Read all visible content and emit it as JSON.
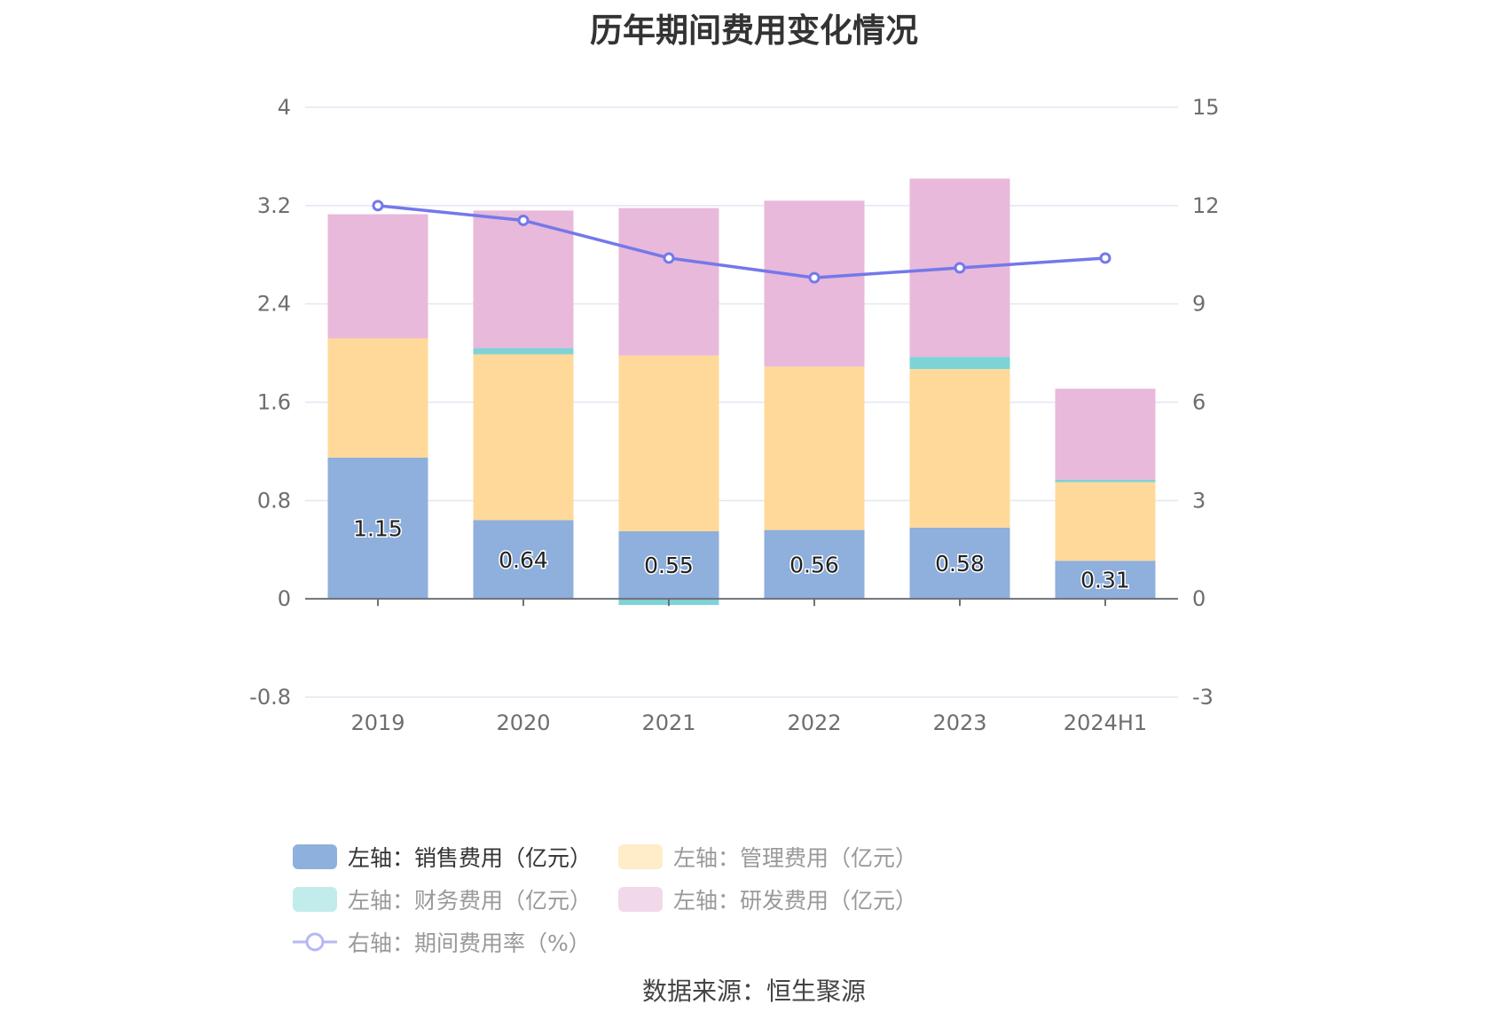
{
  "title": "历年期间费用变化情况",
  "source": "数据来源：恒生聚源",
  "legend": [
    {
      "label": "左轴：销售费用（亿元）",
      "color": "#8eb0dc",
      "kind": "bar",
      "active": true
    },
    {
      "label": "左轴：管理费用（亿元）",
      "color": "#ffecc8",
      "kind": "bar",
      "active": false
    },
    {
      "label": "左轴：财务费用（亿元）",
      "color": "#c2ecec",
      "kind": "bar",
      "active": false
    },
    {
      "label": "左轴：研发费用（亿元）",
      "color": "#f2d9ea",
      "kind": "bar",
      "active": false
    },
    {
      "label": "右轴：期间费用率（%）",
      "color": "#b5b8f4",
      "kind": "line",
      "active": false
    }
  ],
  "chart_data": {
    "type": "bar",
    "stacked": true,
    "categories": [
      "2019",
      "2020",
      "2021",
      "2022",
      "2023",
      "2024H1"
    ],
    "series": [
      {
        "name": "左轴：销售费用（亿元）",
        "axis": "left",
        "color": "#8fafdc",
        "values": [
          1.15,
          0.64,
          0.55,
          0.56,
          0.58,
          0.31
        ],
        "labels": [
          "1.15",
          "0.64",
          "0.55",
          "0.56",
          "0.58",
          "0.31"
        ]
      },
      {
        "name": "左轴：管理费用（亿元）",
        "axis": "left",
        "color": "#ffd999",
        "values": [
          0.97,
          1.35,
          1.43,
          1.33,
          1.29,
          0.64
        ]
      },
      {
        "name": "左轴：财务费用（亿元）",
        "axis": "left",
        "color": "#7ed3d6",
        "values": [
          0.0,
          0.05,
          -0.05,
          0.0,
          0.1,
          0.02
        ]
      },
      {
        "name": "左轴：研发费用（亿元）",
        "axis": "left",
        "color": "#e8b9da",
        "values": [
          1.01,
          1.12,
          1.2,
          1.35,
          1.45,
          0.74
        ]
      },
      {
        "name": "右轴：期间费用率（%）",
        "type": "line",
        "axis": "right",
        "color": "#7478ea",
        "values": [
          12.0,
          11.55,
          10.4,
          9.8,
          10.1,
          10.4
        ]
      }
    ],
    "y_left": {
      "min": -0.8,
      "max": 4,
      "ticks": [
        "-0.8",
        "0",
        "0.8",
        "1.6",
        "2.4",
        "3.2",
        "4"
      ]
    },
    "y_right": {
      "min": -3,
      "max": 15,
      "ticks": [
        "-3",
        "0",
        "3",
        "6",
        "9",
        "12",
        "15"
      ]
    },
    "grid": true
  }
}
